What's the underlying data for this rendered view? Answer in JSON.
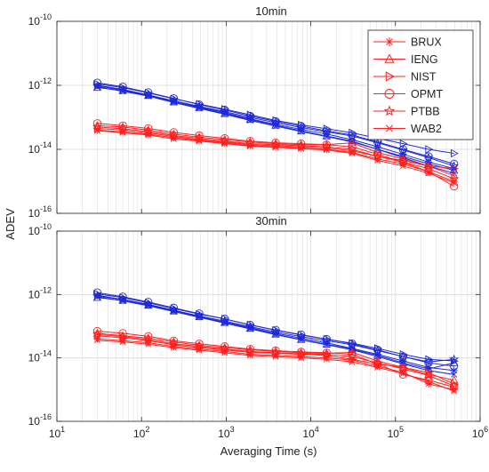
{
  "colors": {
    "red": "#ff2020",
    "blue": "#1f2ad6",
    "grid": "#d9d9d9",
    "axis": "#262626"
  },
  "shared": {
    "ylabel": "ADEV",
    "xlabel": "Averaging Time (s)",
    "x_ticks": [
      {
        "base": "10",
        "exp": "1"
      },
      {
        "base": "10",
        "exp": "2"
      },
      {
        "base": "10",
        "exp": "3"
      },
      {
        "base": "10",
        "exp": "4"
      },
      {
        "base": "10",
        "exp": "5"
      },
      {
        "base": "10",
        "exp": "6"
      }
    ],
    "y_ticks": [
      {
        "base": "10",
        "exp": "-10"
      },
      {
        "base": "10",
        "exp": "-12"
      },
      {
        "base": "10",
        "exp": "-14"
      },
      {
        "base": "10",
        "exp": "-16"
      }
    ]
  },
  "legend": {
    "entries": [
      {
        "label": "BRUX",
        "marker": "asterisk"
      },
      {
        "label": "IENG",
        "marker": "triangle-up"
      },
      {
        "label": "NIST",
        "marker": "triangle-right"
      },
      {
        "label": "OPMT",
        "marker": "circle"
      },
      {
        "label": "PTBB",
        "marker": "pentagram"
      },
      {
        "label": "WAB2",
        "marker": "x"
      }
    ]
  },
  "chart_data": [
    {
      "type": "line",
      "title": "10min",
      "x_scale": "log",
      "y_scale": "log",
      "xlim": [
        10,
        1000000
      ],
      "ylim": [
        1e-16,
        1e-10
      ],
      "grid": true,
      "legend_position": "top-right",
      "x": [
        30,
        60,
        120,
        240,
        480,
        960,
        1920,
        3840,
        7680,
        15360,
        30720,
        61440,
        122880,
        245760,
        491520
      ],
      "series_groups": [
        {
          "group": "blue",
          "series": [
            {
              "name": "BRUX",
              "values": [
                1e-12,
                7.5e-13,
                5e-13,
                3.2e-13,
                2.1e-13,
                1.4e-13,
                9e-14,
                6e-14,
                4.2e-14,
                3e-14,
                2e-14,
                1.2e-14,
                7e-15,
                4e-15,
                2.5e-15
              ]
            },
            {
              "name": "IENG",
              "values": [
                8.5e-13,
                6.8e-13,
                4.8e-13,
                3e-13,
                2e-13,
                1.3e-13,
                8.5e-14,
                5.6e-14,
                3.8e-14,
                2.6e-14,
                1.8e-14,
                1e-14,
                6e-15,
                3.5e-15,
                2.2e-15
              ]
            },
            {
              "name": "NIST",
              "values": [
                1.1e-12,
                8.5e-13,
                5.8e-13,
                3.8e-13,
                2.6e-13,
                1.8e-13,
                1.2e-13,
                8e-14,
                5.8e-14,
                4.4e-14,
                3.3e-14,
                2.2e-14,
                1.5e-14,
                1e-14,
                7.5e-15
              ]
            },
            {
              "name": "OPMT",
              "values": [
                1.2e-12,
                9e-13,
                6e-13,
                3.9e-13,
                2.5e-13,
                1.7e-13,
                1.1e-13,
                7.5e-14,
                5.3e-14,
                3.8e-14,
                2.8e-14,
                1.7e-14,
                1e-14,
                6e-15,
                3.5e-15
              ]
            },
            {
              "name": "PTBB",
              "values": [
                9.5e-13,
                7.2e-13,
                5e-13,
                3.3e-13,
                2.2e-13,
                1.5e-13,
                1e-13,
                6.8e-14,
                4.8e-14,
                3.5e-14,
                2.6e-14,
                1.6e-14,
                9.5e-15,
                5.5e-15,
                3e-15
              ]
            },
            {
              "name": "WAB2",
              "values": [
                9e-13,
                6.5e-13,
                4.6e-13,
                2.9e-13,
                1.9e-13,
                1.25e-13,
                8e-14,
                5.3e-14,
                3.6e-14,
                2.5e-14,
                1.7e-14,
                1e-14,
                5.5e-15,
                3e-15,
                1.8e-15
              ]
            }
          ]
        },
        {
          "group": "red",
          "series": [
            {
              "name": "BRUX",
              "values": [
                4e-14,
                3.5e-14,
                3e-14,
                2.3e-14,
                1.9e-14,
                1.6e-14,
                1.3e-14,
                1.2e-14,
                1.1e-14,
                1e-14,
                8e-15,
                5e-15,
                3.5e-15,
                2e-15,
                1e-15
              ]
            },
            {
              "name": "IENG",
              "values": [
                5.5e-14,
                5e-14,
                4e-14,
                3e-14,
                2.4e-14,
                2e-14,
                1.7e-14,
                1.5e-14,
                1.4e-14,
                1.4e-14,
                1.6e-14,
                8e-15,
                5e-15,
                3e-15,
                1.5e-15
              ]
            },
            {
              "name": "NIST",
              "values": [
                4.5e-14,
                4e-14,
                3.3e-14,
                2.5e-14,
                2e-14,
                1.7e-14,
                1.4e-14,
                1.3e-14,
                1.2e-14,
                1.1e-14,
                9e-15,
                6e-15,
                4.5e-15,
                3e-15,
                2.5e-15
              ]
            },
            {
              "name": "OPMT",
              "values": [
                6.5e-14,
                5.5e-14,
                4.5e-14,
                3.4e-14,
                2.7e-14,
                2.2e-14,
                1.8e-14,
                1.6e-14,
                1.5e-14,
                1.4e-14,
                1.2e-14,
                7e-15,
                4e-15,
                2e-15,
                7e-16
              ]
            },
            {
              "name": "PTBB",
              "values": [
                5e-14,
                4.4e-14,
                3.6e-14,
                2.7e-14,
                2.2e-14,
                1.8e-14,
                1.5e-14,
                1.4e-14,
                1.3e-14,
                1.2e-14,
                1e-14,
                6e-15,
                4e-15,
                2.5e-15,
                1.2e-15
              ]
            },
            {
              "name": "WAB2",
              "values": [
                3.8e-14,
                3.3e-14,
                2.8e-14,
                2.1e-14,
                1.8e-14,
                1.5e-14,
                1.25e-14,
                1.15e-14,
                1.05e-14,
                9.5e-15,
                7.5e-15,
                4.5e-15,
                3e-15,
                1.8e-15,
                9e-16
              ]
            }
          ]
        }
      ]
    },
    {
      "type": "line",
      "title": "30min",
      "x_scale": "log",
      "y_scale": "log",
      "xlim": [
        10,
        1000000
      ],
      "ylim": [
        1e-16,
        1e-10
      ],
      "grid": true,
      "x": [
        30,
        60,
        120,
        240,
        480,
        960,
        1920,
        3840,
        7680,
        15360,
        30720,
        61440,
        122880,
        245760,
        491520
      ],
      "series_groups": [
        {
          "group": "blue",
          "series": [
            {
              "name": "BRUX",
              "values": [
                9.5e-13,
                7e-13,
                4.8e-13,
                3.1e-13,
                2e-13,
                1.35e-13,
                9e-14,
                6e-14,
                4.2e-14,
                3e-14,
                2e-14,
                1.3e-14,
                8e-15,
                5e-15,
                4e-15
              ]
            },
            {
              "name": "IENG",
              "values": [
                8e-13,
                6.5e-13,
                4.6e-13,
                3e-13,
                2e-13,
                1.3e-13,
                8.5e-14,
                5.6e-14,
                3.8e-14,
                2.7e-14,
                1.9e-14,
                1.2e-14,
                7e-15,
                4.5e-15,
                7e-15
              ]
            },
            {
              "name": "NIST",
              "values": [
                1.05e-12,
                8e-13,
                5.5e-13,
                3.6e-13,
                2.4e-13,
                1.7e-13,
                1.1e-13,
                7.5e-14,
                5.3e-14,
                3.9e-14,
                2.9e-14,
                2e-14,
                1.3e-14,
                9e-15,
                8e-15
              ]
            },
            {
              "name": "OPMT",
              "values": [
                1.15e-12,
                8.5e-13,
                5.8e-13,
                3.8e-13,
                2.5e-13,
                1.7e-13,
                1.1e-13,
                7.6e-14,
                5.4e-14,
                3.9e-14,
                2.8e-14,
                1.8e-14,
                1.1e-14,
                7e-15,
                5.5e-15
              ]
            },
            {
              "name": "PTBB",
              "values": [
                9e-13,
                7e-13,
                4.9e-13,
                3.2e-13,
                2.1e-13,
                1.45e-13,
                9.7e-14,
                6.6e-14,
                4.7e-14,
                3.5e-14,
                2.6e-14,
                1.7e-14,
                1.1e-14,
                7.5e-15,
                9e-15
              ]
            },
            {
              "name": "WAB2",
              "values": [
                8.5e-13,
                6.3e-13,
                4.4e-13,
                2.9e-13,
                1.9e-13,
                1.25e-13,
                8.2e-14,
                5.4e-14,
                3.7e-14,
                2.6e-14,
                1.8e-14,
                1.1e-14,
                6.5e-15,
                4e-15,
                3e-15
              ]
            }
          ]
        },
        {
          "group": "red",
          "series": [
            {
              "name": "BRUX",
              "values": [
                4e-14,
                3.5e-14,
                3e-14,
                2.3e-14,
                1.9e-14,
                1.6e-14,
                1.3e-14,
                1.2e-14,
                1.1e-14,
                1e-14,
                8.5e-15,
                5.5e-15,
                3.5e-15,
                1.5e-15,
                1e-15
              ]
            },
            {
              "name": "IENG",
              "values": [
                6e-14,
                5e-14,
                4.2e-14,
                3.2e-14,
                2.5e-14,
                2.1e-14,
                1.8e-14,
                1.6e-14,
                1.45e-14,
                1.4e-14,
                1.5e-14,
                8e-15,
                5e-15,
                3e-15,
                2e-15
              ]
            },
            {
              "name": "NIST",
              "values": [
                5e-14,
                4.3e-14,
                3.5e-14,
                2.6e-14,
                2.1e-14,
                1.8e-14,
                1.5e-14,
                1.4e-14,
                1.3e-14,
                1.2e-14,
                9e-15,
                6.5e-15,
                5e-15,
                3.5e-15,
                1.5e-15
              ]
            },
            {
              "name": "OPMT",
              "values": [
                7e-14,
                6e-14,
                4.8e-14,
                3.5e-14,
                2.8e-14,
                2.3e-14,
                1.9e-14,
                1.7e-14,
                1.55e-14,
                1.45e-14,
                1.3e-14,
                6.5e-15,
                3e-15,
                2e-15,
                1.2e-15
              ]
            },
            {
              "name": "PTBB",
              "values": [
                5.5e-14,
                4.7e-14,
                3.8e-14,
                2.8e-14,
                2.3e-14,
                1.9e-14,
                1.6e-14,
                1.45e-14,
                1.35e-14,
                1.3e-14,
                1.1e-14,
                7e-15,
                4.5e-15,
                2.8e-15,
                1.3e-15
              ]
            },
            {
              "name": "WAB2",
              "values": [
                3.6e-14,
                3.2e-14,
                2.7e-14,
                2.1e-14,
                1.75e-14,
                1.45e-14,
                1.2e-14,
                1.1e-14,
                1e-14,
                9e-15,
                7.5e-15,
                5e-15,
                3.2e-15,
                1.8e-15,
                9e-16
              ]
            }
          ]
        }
      ]
    }
  ]
}
